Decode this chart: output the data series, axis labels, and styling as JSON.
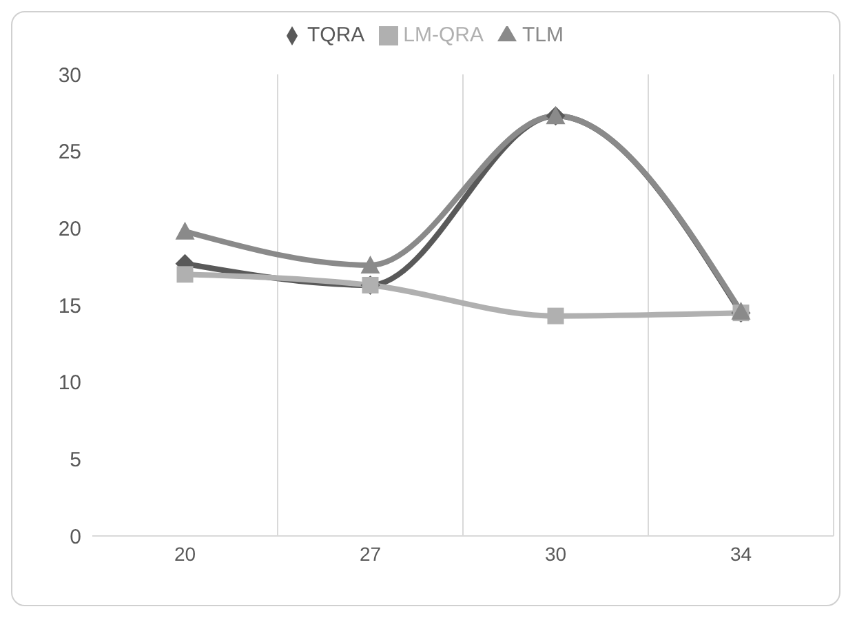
{
  "chart_data": {
    "type": "line",
    "categories": [
      "20",
      "27",
      "30",
      "34"
    ],
    "series": [
      {
        "name": "TQRA",
        "color": "#595959",
        "marker": "diamond",
        "values": [
          17.7,
          16.3,
          27.3,
          14.5
        ]
      },
      {
        "name": "LM-QRA",
        "color": "#b0b0b0",
        "marker": "square",
        "values": [
          17.0,
          16.3,
          14.3,
          14.5
        ]
      },
      {
        "name": "TLM",
        "color": "#8a8a8a",
        "marker": "triangle",
        "values": [
          19.8,
          17.6,
          27.3,
          14.6
        ]
      }
    ],
    "ylim": [
      0,
      30
    ],
    "yticks": [
      0,
      5,
      10,
      15,
      20,
      25,
      30
    ],
    "grid": "x",
    "legend": "top"
  }
}
